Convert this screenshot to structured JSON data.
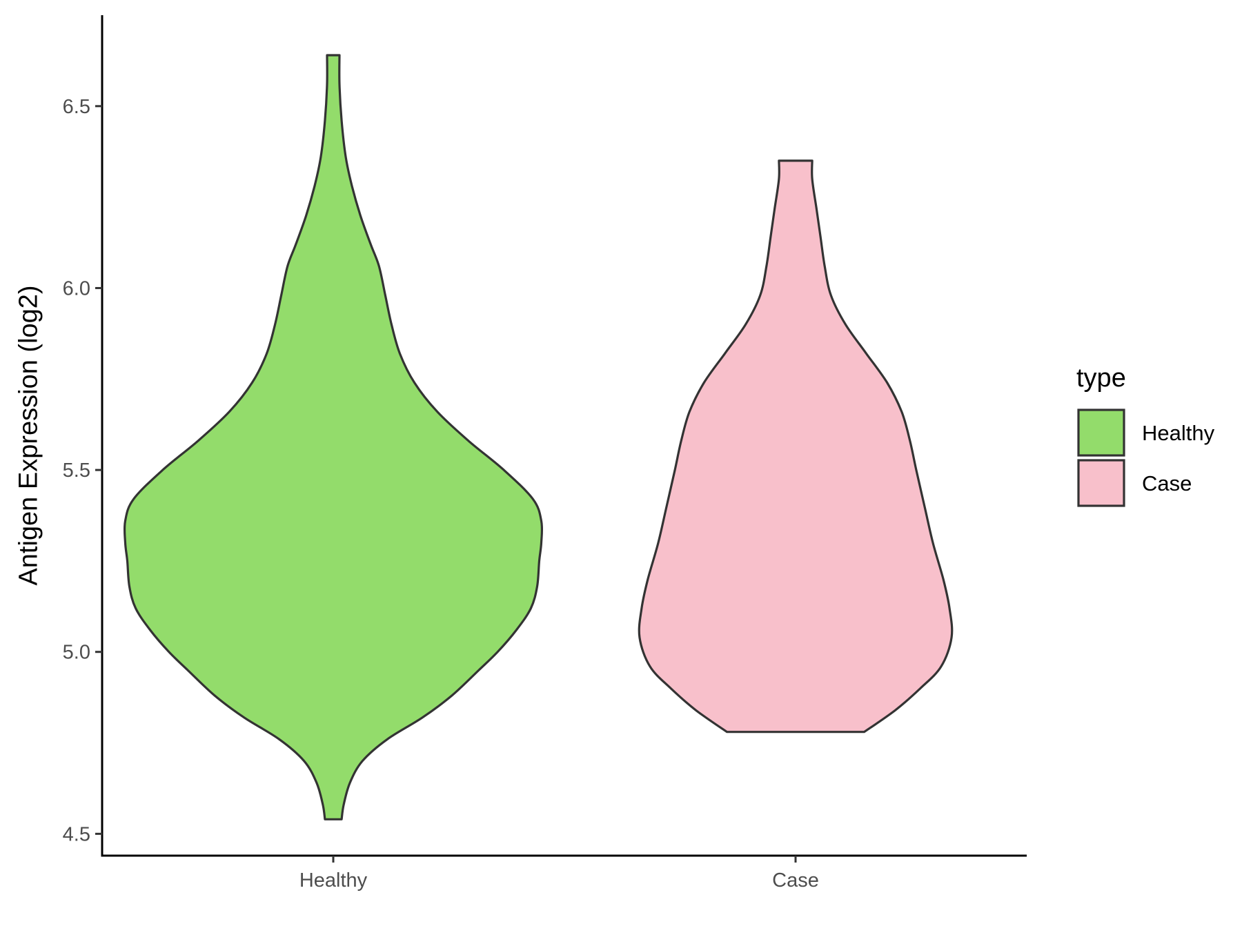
{
  "chart_data": {
    "type": "violin",
    "title": "",
    "xlabel": "",
    "ylabel": "Antigen Expression (log2)",
    "ylim": [
      4.44,
      6.75
    ],
    "yticks": [
      4.5,
      5.0,
      5.5,
      6.0,
      6.5
    ],
    "ytick_labels": [
      "4.5",
      "5.0",
      "5.5",
      "6.0",
      "6.5"
    ],
    "categories": [
      "Healthy",
      "Case"
    ],
    "legend": {
      "title": "type",
      "position": "right",
      "entries": [
        {
          "label": "Healthy",
          "color": "#93DC6B"
        },
        {
          "label": "Case",
          "color": "#F8C0CB"
        }
      ]
    },
    "series": [
      {
        "category": "Healthy",
        "color": "#93DC6B",
        "min": 4.54,
        "max": 6.64,
        "profile": [
          [
            4.54,
            0.04
          ],
          [
            4.58,
            0.05
          ],
          [
            4.64,
            0.08
          ],
          [
            4.7,
            0.14
          ],
          [
            4.76,
            0.26
          ],
          [
            4.82,
            0.43
          ],
          [
            4.88,
            0.57
          ],
          [
            4.95,
            0.7
          ],
          [
            5.0,
            0.79
          ],
          [
            5.06,
            0.88
          ],
          [
            5.12,
            0.95
          ],
          [
            5.18,
            0.98
          ],
          [
            5.25,
            0.99
          ],
          [
            5.3,
            1.0
          ],
          [
            5.36,
            1.0
          ],
          [
            5.42,
            0.96
          ],
          [
            5.5,
            0.82
          ],
          [
            5.58,
            0.65
          ],
          [
            5.66,
            0.5
          ],
          [
            5.74,
            0.39
          ],
          [
            5.82,
            0.32
          ],
          [
            5.9,
            0.28
          ],
          [
            5.98,
            0.25
          ],
          [
            6.06,
            0.22
          ],
          [
            6.12,
            0.18
          ],
          [
            6.2,
            0.13
          ],
          [
            6.28,
            0.09
          ],
          [
            6.36,
            0.06
          ],
          [
            6.46,
            0.04
          ],
          [
            6.56,
            0.03
          ],
          [
            6.64,
            0.03
          ]
        ]
      },
      {
        "category": "Case",
        "color": "#F8C0CB",
        "min": 4.78,
        "max": 6.35,
        "profile": [
          [
            4.78,
            0.33
          ],
          [
            4.84,
            0.48
          ],
          [
            4.9,
            0.6
          ],
          [
            4.96,
            0.7
          ],
          [
            5.04,
            0.75
          ],
          [
            5.12,
            0.74
          ],
          [
            5.2,
            0.71
          ],
          [
            5.3,
            0.66
          ],
          [
            5.4,
            0.62
          ],
          [
            5.5,
            0.58
          ],
          [
            5.58,
            0.55
          ],
          [
            5.66,
            0.51
          ],
          [
            5.74,
            0.44
          ],
          [
            5.82,
            0.34
          ],
          [
            5.9,
            0.24
          ],
          [
            5.98,
            0.17
          ],
          [
            6.06,
            0.14
          ],
          [
            6.14,
            0.12
          ],
          [
            6.22,
            0.1
          ],
          [
            6.3,
            0.08
          ],
          [
            6.35,
            0.08
          ]
        ]
      }
    ]
  }
}
